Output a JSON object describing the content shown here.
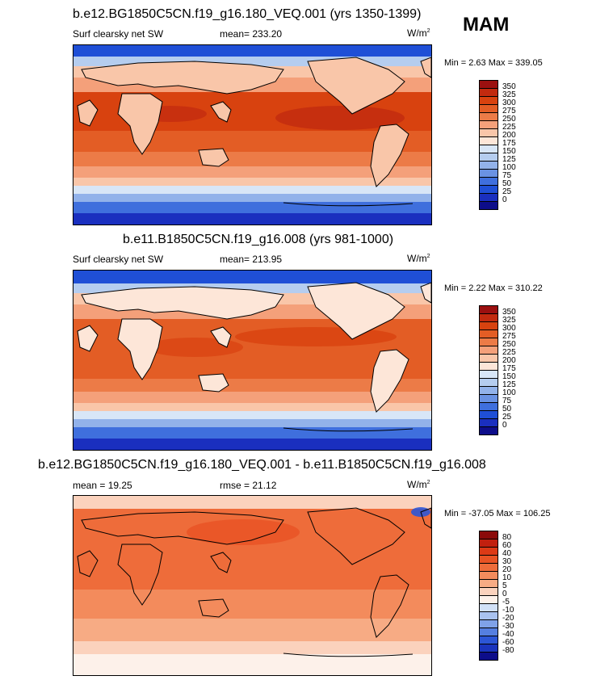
{
  "season": "MAM",
  "panels": [
    {
      "title": "b.e12.BG1850C5CN.f19_g16.180_VEQ.001 (yrs 1350-1399)",
      "variable": "Surf clearsky net SW",
      "stat": "mean= 233.20",
      "units_base": "W/m",
      "units_exp": "2",
      "minmax": "Min =   2.63 Max = 339.05",
      "ticks": [
        "350",
        "325",
        "300",
        "275",
        "250",
        "225",
        "200",
        "175",
        "150",
        "125",
        "100",
        "75",
        "50",
        "25",
        "0"
      ],
      "colors": [
        "#9b1010",
        "#c22a0f",
        "#d8420f",
        "#e35d25",
        "#ec7b47",
        "#f4a07a",
        "#f9c6a9",
        "#fde6d8",
        "#d8e6f7",
        "#b5cdef",
        "#92b2ea",
        "#6a92e3",
        "#3f6fdd",
        "#1f4fd6",
        "#1a2fbf",
        "#0d0d8a"
      ]
    },
    {
      "title": "b.e11.B1850C5CN.f19_g16.008 (yrs 981-1000)",
      "variable": "Surf clearsky net SW",
      "stat": "mean= 213.95",
      "units_base": "W/m",
      "units_exp": "2",
      "minmax": "Min =   2.22 Max = 310.22",
      "ticks": [
        "350",
        "325",
        "300",
        "275",
        "250",
        "225",
        "200",
        "175",
        "150",
        "125",
        "100",
        "75",
        "50",
        "25",
        "0"
      ],
      "colors": [
        "#9b1010",
        "#c22a0f",
        "#d8420f",
        "#e35d25",
        "#ec7b47",
        "#f4a07a",
        "#f9c6a9",
        "#fde6d8",
        "#d8e6f7",
        "#b5cdef",
        "#92b2ea",
        "#6a92e3",
        "#3f6fdd",
        "#1f4fd6",
        "#1a2fbf",
        "#0d0d8a"
      ]
    },
    {
      "title": "b.e12.BG1850C5CN.f19_g16.180_VEQ.001 - b.e11.B1850C5CN.f19_g16.008",
      "variable": "mean =  19.25",
      "stat": "rmse =  21.12",
      "units_base": "W/m",
      "units_exp": "2",
      "minmax": "Min = -37.05 Max = 106.25",
      "ticks": [
        "80",
        "60",
        "40",
        "30",
        "20",
        "10",
        "5",
        "0",
        "-5",
        "-10",
        "-20",
        "-30",
        "-40",
        "-60",
        "-80"
      ],
      "colors": [
        "#8b0a0a",
        "#c1200f",
        "#dc3a16",
        "#e85324",
        "#ee6c3a",
        "#f38b5c",
        "#f7ab84",
        "#fbd2bd",
        "#fdf1ea",
        "#d2e1f7",
        "#a9c2ef",
        "#7fa2e8",
        "#557fe0",
        "#2c56d6",
        "#1a34bd",
        "#0d0d8a"
      ]
    }
  ]
}
